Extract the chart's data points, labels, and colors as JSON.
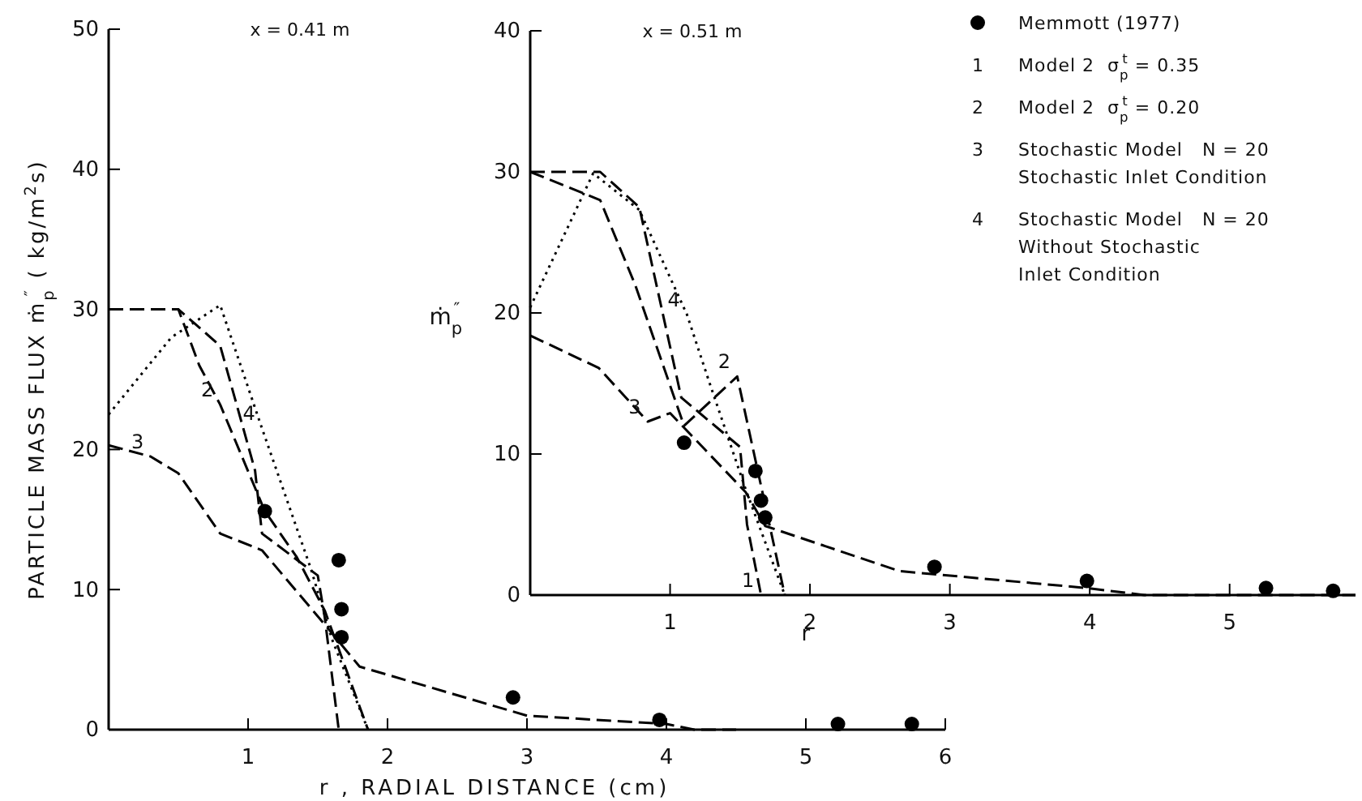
{
  "chart_data": [
    {
      "type": "line",
      "title": "x = 0.41 m",
      "xlabel": "r , RADIAL DISTANCE (cm)",
      "ylabel": "PARTICLE MASS FLUX ṁ$_{p}$$^{″}$ ( kg/m$^{2}$s)",
      "xlim": [
        0,
        6
      ],
      "xticks": [
        1,
        2,
        3,
        4,
        5,
        6
      ],
      "ylim": [
        0,
        50
      ],
      "yticks": [
        0,
        10,
        20,
        30,
        40,
        50
      ],
      "grid": false,
      "series": [
        {
          "type": "scatter",
          "marker": "circle",
          "color": "#000000",
          "x": [
            1.12,
            1.65,
            1.67,
            1.67,
            2.9,
            3.95,
            5.23,
            5.76
          ],
          "values": [
            15.6,
            12.1,
            8.6,
            6.6,
            2.3,
            0.7,
            0.4,
            0.4
          ]
        },
        {
          "type": "line",
          "line_style": "dashed",
          "marker": "none",
          "color": "#000000",
          "x": [
            0,
            0.5,
            0.8,
            1.05,
            1.1,
            1.5,
            1.55,
            1.65
          ],
          "values": [
            30,
            30,
            27.4,
            18.5,
            14,
            11,
            8,
            0
          ]
        },
        {
          "type": "line",
          "line_style": "dashed",
          "marker": "none",
          "color": "#000000",
          "x": [
            0,
            0.5,
            0.65,
            0.8,
            1.12,
            1.35,
            1.55,
            1.86
          ],
          "values": [
            30,
            30,
            26,
            23.2,
            15.6,
            12.3,
            8.5,
            0
          ]
        },
        {
          "type": "line",
          "line_style": "dashed",
          "marker": "none",
          "color": "#000000",
          "x": [
            0,
            0.3,
            0.5,
            0.8,
            1.1,
            1.55,
            1.8,
            3,
            4,
            4.2,
            4.5
          ],
          "values": [
            20.3,
            19.5,
            18.3,
            14,
            12.8,
            7.5,
            4.5,
            1,
            0.4,
            0,
            0
          ]
        },
        {
          "type": "line",
          "line_style": "dotted",
          "marker": "none",
          "color": "#000000",
          "x": [
            0,
            0.45,
            0.8,
            1.1,
            1.45,
            1.6,
            1.86
          ],
          "values": [
            22.5,
            28,
            30.3,
            21.5,
            11.5,
            6.5,
            0
          ]
        }
      ],
      "annotations": [
        {
          "text": "2",
          "x": 0.8,
          "y": 23.2
        },
        {
          "text": "3",
          "x": 0.3,
          "y": 19.5
        },
        {
          "text": "4",
          "x": 1.1,
          "y": 21.5
        }
      ]
    },
    {
      "type": "line",
      "title": "x = 0.51 m",
      "xlabel": "r",
      "ylabel": "ṁ$_{p}$$^{″}$",
      "xlim": [
        0,
        5.9
      ],
      "xticks": [
        1,
        2,
        3,
        4,
        5
      ],
      "ylim": [
        0,
        40
      ],
      "yticks": [
        0,
        10,
        20,
        30,
        40
      ],
      "grid": false,
      "legend": "top right",
      "series": [
        {
          "name": "Memmott (1977)",
          "type": "scatter",
          "marker": "circle",
          "color": "#000000",
          "x": [
            1.1,
            1.61,
            1.65,
            1.68,
            2.89,
            3.98,
            5.26,
            5.74
          ],
          "values": [
            10.8,
            8.8,
            6.7,
            5.5,
            2.0,
            1.0,
            0.5,
            0.3
          ]
        },
        {
          "name": "1 Model 2  σ$_{p}$$^{t}$ = 0.35",
          "type": "line",
          "line_style": "dashed",
          "marker": "none",
          "color": "#000000",
          "x": [
            0,
            0.5,
            0.78,
            1.08,
            1.5,
            1.55,
            1.65
          ],
          "values": [
            30,
            30,
            27.5,
            14,
            10.5,
            5,
            0
          ]
        },
        {
          "name": "2 Model 2  σ$_{p}$$^{t}$ = 0.20",
          "type": "line",
          "line_style": "dashed",
          "marker": "none",
          "color": "#000000",
          "x": [
            0,
            0.5,
            0.75,
            1.1,
            1.48,
            1.82
          ],
          "values": [
            30,
            28,
            22,
            12,
            15.5,
            0
          ]
        },
        {
          "name": "3 Stochastic Model   N = 20\nStochastic Inlet Condition",
          "type": "line",
          "line_style": "dashed",
          "marker": "none",
          "color": "#000000",
          "x": [
            0,
            0.49,
            0.84,
            1.0,
            1.54,
            1.68,
            2.64,
            3.98,
            4.39,
            5.9
          ],
          "values": [
            18.4,
            16.1,
            12.3,
            12.9,
            7.3,
            4.9,
            1.7,
            0.5,
            0,
            0
          ]
        },
        {
          "name": "4 Stochastic Model   N = 20\nWithout Stochastic\nInlet Condition",
          "type": "line",
          "line_style": "dotted",
          "marker": "none",
          "color": "#000000",
          "x": [
            0,
            0.45,
            0.78,
            1.12,
            1.28,
            1.54,
            1.82
          ],
          "values": [
            20.4,
            29.9,
            27.3,
            19.9,
            15.1,
            7.5,
            0
          ]
        }
      ],
      "annotations": [
        {
          "text": "1",
          "x": 1.65,
          "y": 0
        },
        {
          "text": "2",
          "x": 1.48,
          "y": 15.5
        },
        {
          "text": "3",
          "x": 0.84,
          "y": 12.3
        },
        {
          "text": "4",
          "x": 1.12,
          "y": 19.9
        }
      ]
    }
  ]
}
